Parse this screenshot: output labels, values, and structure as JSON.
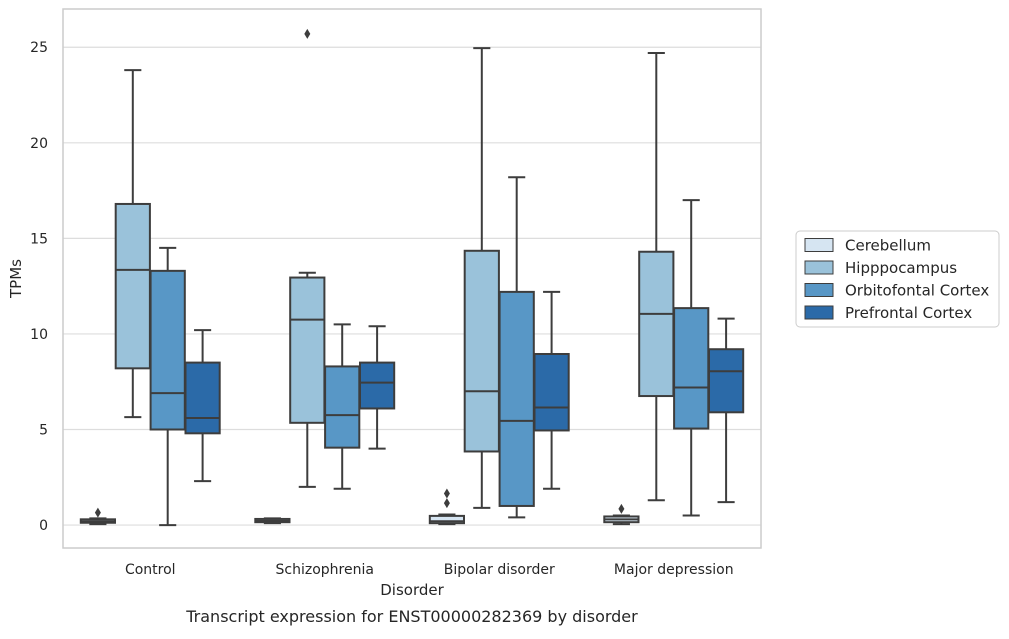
{
  "chart_data": {
    "type": "box",
    "caption": "Transcript expression for ENST00000282369 by disorder",
    "xlabel": "Disorder",
    "ylabel": "TPMs",
    "ylim": [
      -1.2,
      27
    ],
    "yticks": [
      0,
      5,
      10,
      15,
      20,
      25
    ],
    "ytick_labels": [
      "0",
      "5",
      "10",
      "15",
      "20",
      "25"
    ],
    "grid": "horizontal",
    "categories": [
      "Control",
      "Schizophrenia",
      "Bipolar disorder",
      "Major depression"
    ],
    "legend_position": "right",
    "series": [
      {
        "name": "Cerebellum",
        "color": "#d6e5f2",
        "boxes": [
          {
            "whislo": 0.05,
            "q1": 0.12,
            "med": 0.2,
            "q3": 0.3,
            "whishi": 0.35,
            "fliers": [
              0.65
            ]
          },
          {
            "whislo": 0.1,
            "q1": 0.15,
            "med": 0.22,
            "q3": 0.32,
            "whishi": 0.35,
            "fliers": []
          },
          {
            "whislo": 0.05,
            "q1": 0.1,
            "med": 0.2,
            "q3": 0.48,
            "whishi": 0.55,
            "fliers": [
              1.15,
              1.65
            ]
          },
          {
            "whislo": 0.05,
            "q1": 0.15,
            "med": 0.3,
            "q3": 0.45,
            "whishi": 0.5,
            "fliers": [
              0.85
            ]
          }
        ]
      },
      {
        "name": "Hipppocampus",
        "color": "#9ac2da",
        "boxes": [
          {
            "whislo": 5.65,
            "q1": 8.2,
            "med": 13.35,
            "q3": 16.8,
            "whishi": 23.8,
            "fliers": []
          },
          {
            "whislo": 2.0,
            "q1": 5.35,
            "med": 10.75,
            "q3": 12.95,
            "whishi": 13.2,
            "fliers": [
              25.7
            ]
          },
          {
            "whislo": 0.9,
            "q1": 3.85,
            "med": 7.0,
            "q3": 14.35,
            "whishi": 24.95,
            "fliers": []
          },
          {
            "whislo": 1.3,
            "q1": 6.75,
            "med": 11.05,
            "q3": 14.3,
            "whishi": 24.7,
            "fliers": []
          }
        ]
      },
      {
        "name": "Orbitofontal Cortex",
        "color": "#5897c6",
        "boxes": [
          {
            "whislo": 0.0,
            "q1": 5.0,
            "med": 6.9,
            "q3": 13.3,
            "whishi": 14.5,
            "fliers": []
          },
          {
            "whislo": 1.9,
            "q1": 4.05,
            "med": 5.75,
            "q3": 8.3,
            "whishi": 10.5,
            "fliers": []
          },
          {
            "whislo": 0.4,
            "q1": 1.0,
            "med": 5.45,
            "q3": 12.2,
            "whishi": 18.2,
            "fliers": []
          },
          {
            "whislo": 0.5,
            "q1": 5.05,
            "med": 7.2,
            "q3": 11.35,
            "whishi": 17.0,
            "fliers": []
          }
        ]
      },
      {
        "name": "Prefrontal Cortex",
        "color": "#2b6aa8",
        "boxes": [
          {
            "whislo": 2.3,
            "q1": 4.8,
            "med": 5.6,
            "q3": 8.5,
            "whishi": 10.2,
            "fliers": []
          },
          {
            "whislo": 4.0,
            "q1": 6.1,
            "med": 7.45,
            "q3": 8.5,
            "whishi": 10.4,
            "fliers": []
          },
          {
            "whislo": 1.9,
            "q1": 4.95,
            "med": 6.15,
            "q3": 8.95,
            "whishi": 12.2,
            "fliers": []
          },
          {
            "whislo": 1.2,
            "q1": 5.9,
            "med": 8.05,
            "q3": 9.2,
            "whishi": 10.8,
            "fliers": []
          }
        ]
      }
    ]
  }
}
